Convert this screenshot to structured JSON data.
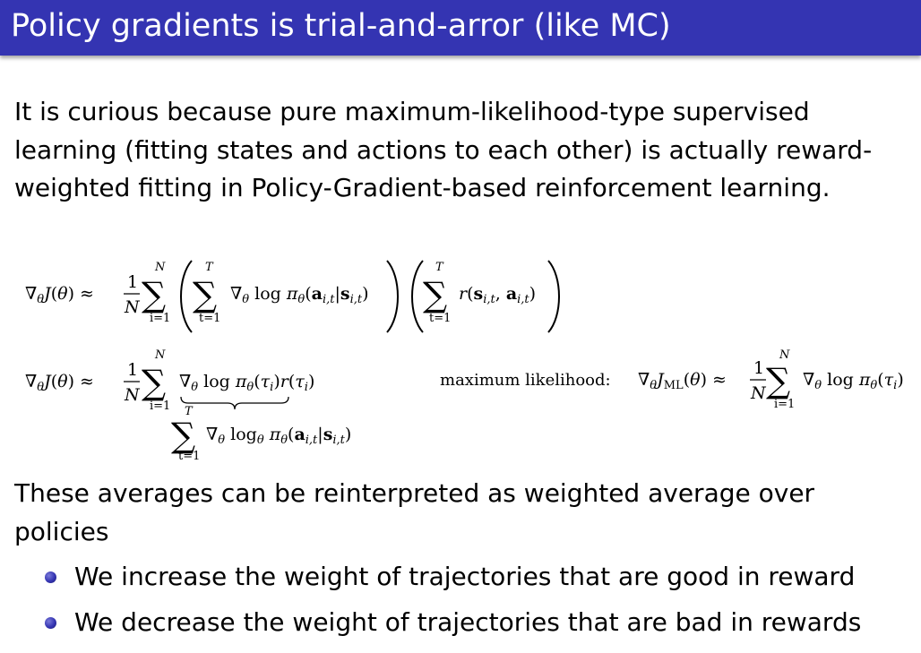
{
  "slide": {
    "title": "Policy gradients is trial-and-arror (like MC)",
    "intro": "It is curious because pure maximum-likelihood-type supervised learning (fitting states and actions to each other) is actually reward-weighted fitting in Policy-Gradient-based reinforcement learning.",
    "body": "These averages can be reinterpreted as weighted average over policies",
    "bullets": [
      "We increase the weight of trajectories that are good in reward",
      "We decrease the weight of trajectories that are bad in rewards"
    ]
  },
  "equations": {
    "eq1": {
      "lhs": "∇θJ(θ) ≈",
      "frac_num": "1",
      "frac_den": "N",
      "sum_outer_upper": "N",
      "sum_outer_lower": "i=1",
      "sum_inner_upper": "T",
      "sum_inner_lower": "t=1",
      "term1": "∇θ log πθ(ai,t|si,t)",
      "term2": "r(si,t, ai,t)"
    },
    "eq2": {
      "lhs": "∇θJ(θ) ≈",
      "frac_num": "1",
      "frac_den": "N",
      "sum_upper": "N",
      "sum_lower": "i=1",
      "term": "∇θ log πθ(τi)r(τi)",
      "underbrace_sum_upper": "T",
      "underbrace_sum_lower": "t=1",
      "underbrace_term": "∇θ logθ πθ(ai,t|si,t)"
    },
    "eq3": {
      "label": "maximum likelihood:",
      "lhs": "∇θJML(θ) ≈",
      "frac_num": "1",
      "frac_den": "N",
      "sum_upper": "N",
      "sum_lower": "i=1",
      "term": "∇θ log πθ(τi)"
    }
  }
}
